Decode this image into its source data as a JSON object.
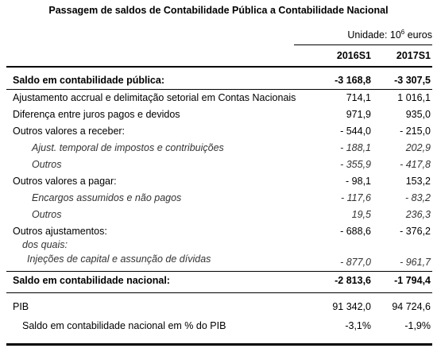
{
  "title": "Passagem de saldos de Contabilidade Pública a Contabilidade Nacional",
  "unit": {
    "text": "Unidade: 10",
    "sup": "6",
    "suffix": " euros"
  },
  "columns": [
    "2016S1",
    "2017S1"
  ],
  "rows": [
    {
      "label": "Saldo em contabilidade pública:",
      "v1": "-3 168,8",
      "v2": "-3 307,5"
    },
    {
      "label": "Ajustamento accrual e delimitação setorial em Contas Nacionais",
      "v1": "714,1",
      "v2": "1 016,1"
    },
    {
      "label": "Diferença entre juros pagos e devidos",
      "v1": "971,9",
      "v2": "935,0"
    },
    {
      "label": "Outros valores a receber:",
      "v1": "- 544,0",
      "v2": "- 215,0"
    },
    {
      "label": "Ajust. temporal de impostos e contribuições",
      "v1": "- 188,1",
      "v2": "202,9"
    },
    {
      "label": "Outros",
      "v1": "- 355,9",
      "v2": "- 417,8"
    },
    {
      "label": "Outros valores a pagar:",
      "v1": "- 98,1",
      "v2": "153,2"
    },
    {
      "label": "Encargos assumidos e não pagos",
      "v1": "- 117,6",
      "v2": "- 83,2"
    },
    {
      "label": "Outros",
      "v1": "19,5",
      "v2": "236,3"
    },
    {
      "label": "Outros ajustamentos:",
      "v1": "- 688,6",
      "v2": "- 376,2"
    },
    {
      "label": "dos quais:",
      "v1": "",
      "v2": ""
    },
    {
      "label": "Injeções de capital e assunção de dívidas",
      "v1": "- 877,0",
      "v2": "- 961,7"
    },
    {
      "label": "Saldo em contabilidade nacional:",
      "v1": "-2 813,6",
      "v2": "-1 794,4"
    },
    {
      "label": "PIB",
      "v1": "91 342,0",
      "v2": "94 724,6"
    },
    {
      "label": "Saldo em contabilidade nacional em % do PIB",
      "v1": "-3,1%",
      "v2": "-1,9%"
    }
  ]
}
